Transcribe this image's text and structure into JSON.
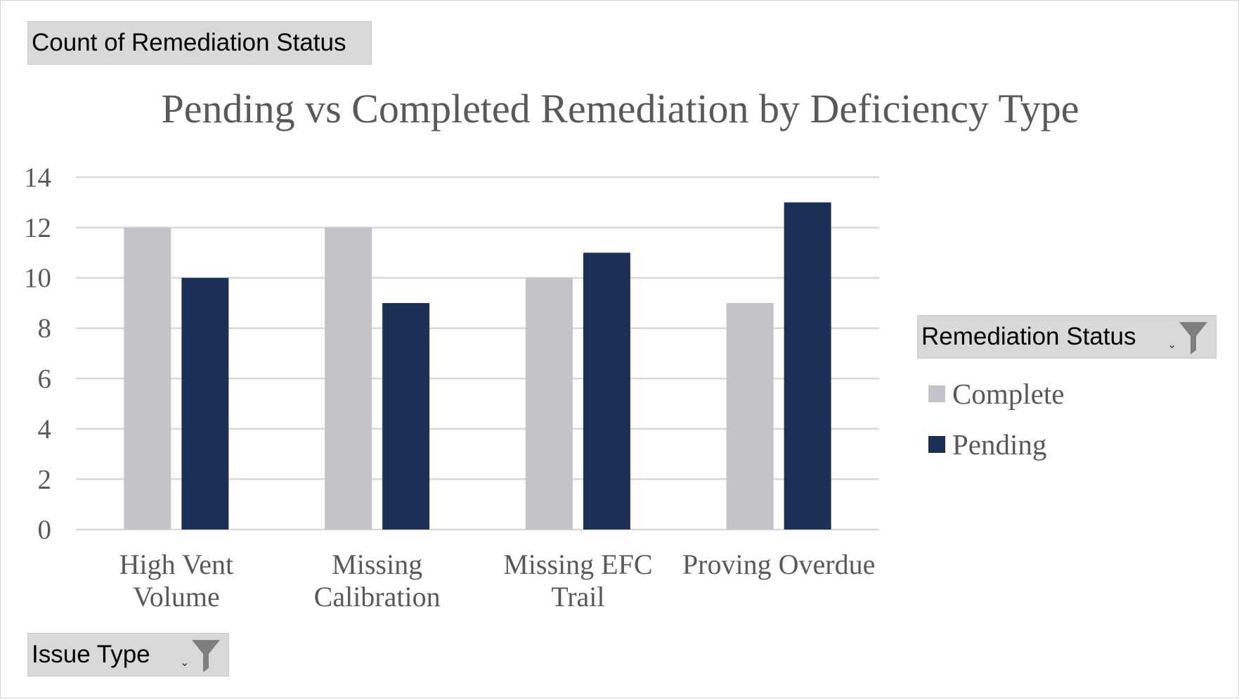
{
  "field_buttons": {
    "value_field": "Count of Remediation  Status",
    "axis_field": "Issue Type",
    "legend_field": "Remediation  Status",
    "dropdown_glyph": "⌄",
    "filter_icon": "funnel-filter-icon"
  },
  "colors": {
    "complete": "#c4c3c8",
    "pending": "#1c3057",
    "gridline": "#d9d9d9",
    "text": "#595959",
    "field_bg": "#d9d9d9",
    "filter_icon": "#7f7f7f"
  },
  "chart_data": {
    "type": "bar",
    "title": "Pending vs Completed Remediation by Deficiency Type",
    "xlabel": "",
    "ylabel": "",
    "categories": [
      "High Vent Volume",
      "Missing Calibration",
      "Missing EFC Trail",
      "Proving Overdue"
    ],
    "category_label_lines": [
      [
        "High Vent",
        "Volume"
      ],
      [
        "Missing",
        "Calibration"
      ],
      [
        "Missing EFC",
        "Trail"
      ],
      [
        "Proving Overdue"
      ]
    ],
    "series": [
      {
        "name": "Complete",
        "values": [
          12,
          12,
          10,
          9
        ]
      },
      {
        "name": "Pending",
        "values": [
          10,
          9,
          11,
          13
        ]
      }
    ],
    "ylim": [
      0,
      14
    ],
    "yticks": [
      0,
      2,
      4,
      6,
      8,
      10,
      12,
      14
    ],
    "grid": true,
    "legend": "right"
  }
}
